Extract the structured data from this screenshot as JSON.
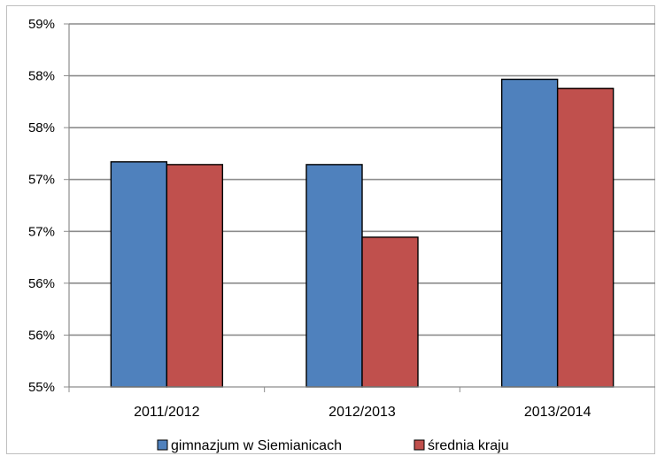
{
  "chart_data": {
    "type": "bar",
    "title": "",
    "xlabel": "",
    "ylabel": "",
    "categories": [
      "2011/2012",
      "2012/2013",
      "2013/2014"
    ],
    "y_tick_labels": [
      "55%",
      "56%",
      "56%",
      "57%",
      "57%",
      "58%",
      "58%",
      "59%"
    ],
    "ylim": [
      0.55,
      0.59
    ],
    "grid": true,
    "legend_position": "bottom",
    "series": [
      {
        "name": "gimnazjum w Siemianicach",
        "color": "#4f81bd",
        "values": [
          0.5748,
          0.5745,
          0.5839
        ]
      },
      {
        "name": "średnia kraju",
        "color": "#c0504d",
        "values": [
          0.5745,
          0.5665,
          0.5829
        ]
      }
    ]
  }
}
